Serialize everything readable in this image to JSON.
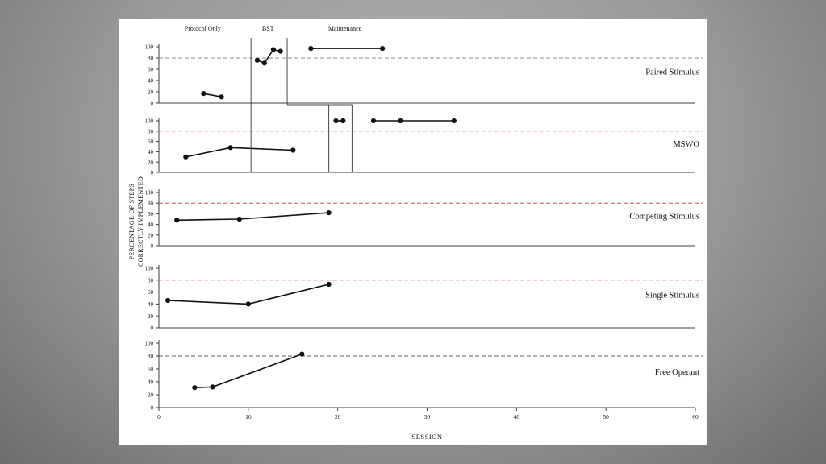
{
  "slide": {
    "background_center_color": "#b3b3b3",
    "background_edge_color": "#6e6e6e",
    "card_color": "#ffffff"
  },
  "chart_data": {
    "type": "line",
    "title": "",
    "xlabel": "SESSION",
    "ylabel_lines": [
      "PERCENTAGE OF STEPS",
      "CORRECTLY IMPLEMENTED"
    ],
    "xlim": [
      0,
      60
    ],
    "xticks": [
      0,
      10,
      20,
      30,
      40,
      50,
      60
    ],
    "ylim": [
      0,
      100
    ],
    "yticks": [
      100,
      80,
      60,
      40,
      20,
      0
    ],
    "criterion_value": 80,
    "line_color": "#111111",
    "axis_color": "#3f3f3f",
    "phase_labels": [
      {
        "label": "Protocol Only",
        "x": 4.9
      },
      {
        "label": "BST",
        "x": 12.2
      },
      {
        "label": "Maintenance",
        "x": 20.8
      }
    ],
    "panels": [
      {
        "label": "Paired Stimulus",
        "criterion_color": "#8a8a99",
        "series": [
          {
            "name": "protocol-only",
            "points": [
              [
                5,
                17
              ],
              [
                7,
                11
              ]
            ]
          },
          {
            "name": "bst",
            "points": [
              [
                11,
                76
              ],
              [
                11.8,
                71
              ],
              [
                12.8,
                95
              ],
              [
                13.6,
                92
              ]
            ]
          },
          {
            "name": "maintenance",
            "points": [
              [
                17,
                97
              ],
              [
                25,
                97
              ]
            ]
          }
        ]
      },
      {
        "label": "MSWO",
        "criterion_color": "#c0504d",
        "series": [
          {
            "name": "protocol-only",
            "points": [
              [
                3,
                30
              ],
              [
                8,
                48
              ],
              [
                15,
                43
              ]
            ]
          },
          {
            "name": "bst",
            "points": [
              [
                19.8,
                100
              ],
              [
                20.6,
                100
              ]
            ]
          },
          {
            "name": "maintenance",
            "points": [
              [
                24,
                100
              ],
              [
                27,
                100
              ],
              [
                33,
                100
              ]
            ]
          }
        ]
      },
      {
        "label": "Competing Stimulus",
        "criterion_color": "#c0504d",
        "series": [
          {
            "name": "protocol-only",
            "points": [
              [
                2,
                48
              ],
              [
                9,
                50
              ],
              [
                19,
                62
              ]
            ]
          }
        ]
      },
      {
        "label": "Single Stimulus",
        "criterion_color": "#c0504d",
        "series": [
          {
            "name": "protocol-only",
            "points": [
              [
                1,
                46
              ],
              [
                10,
                40
              ],
              [
                19,
                73
              ]
            ]
          }
        ]
      },
      {
        "label": "Free Operant",
        "criterion_color": "#595959",
        "series": [
          {
            "name": "protocol-only",
            "points": [
              [
                4,
                31
              ],
              [
                6,
                32
              ],
              [
                16,
                83
              ]
            ]
          }
        ]
      }
    ],
    "phase_lines": [
      {
        "x": 10.3,
        "from": "p1-above",
        "to": "p2-bottom"
      },
      {
        "x": 14.35,
        "from": "p1-above",
        "to": "p1-below"
      },
      {
        "x": 19.0,
        "from": "p1-below",
        "to": "p2-bottom"
      },
      {
        "x": 21.6,
        "from": "p1-below",
        "to": "p2-bottom"
      }
    ],
    "phase_connectors": [
      {
        "y": "p1-below",
        "x1": 14.35,
        "x2": 21.6
      }
    ]
  }
}
